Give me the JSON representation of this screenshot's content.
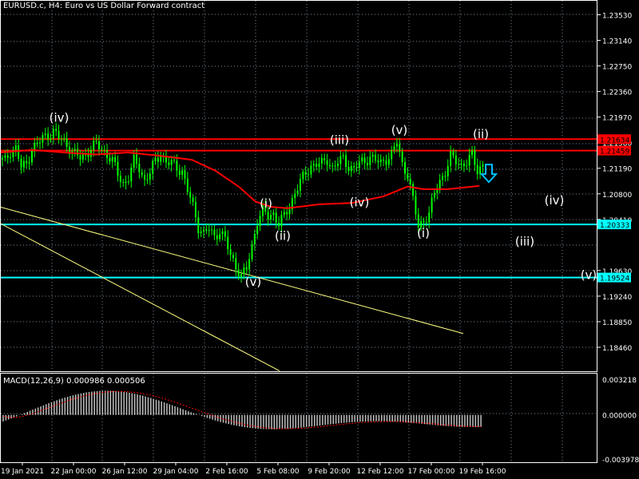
{
  "header": {
    "title": "EURUSD.c, H4:  Euro vs US Dollar Forward contract"
  },
  "macd": {
    "title": "MACD(12,26,9) 0.000986 0.000506",
    "ticks": [
      "0.003218",
      "0.000000",
      "-0.003978"
    ]
  },
  "price_axis": {
    "ticks": [
      "1.23530",
      "1.23140",
      "1.22750",
      "1.22360",
      "1.21970",
      "1.21580",
      "1.21190",
      "1.20800",
      "1.20410",
      "1.19630",
      "1.19240",
      "1.18850",
      "1.18460"
    ]
  },
  "price_tags": [
    {
      "value": "1.21634",
      "color": "#ff0000"
    },
    {
      "value": "1.21459",
      "color": "#ff0000"
    },
    {
      "value": "1.20333",
      "color": "#00ffff"
    },
    {
      "value": "1.19524",
      "color": "#00ffff"
    }
  ],
  "time_axis": {
    "ticks": [
      "19 Jan 2021",
      "22 Jan 00:00",
      "26 Jan 12:00",
      "29 Jan 04:00",
      "2 Feb 16:00",
      "5 Feb 08:00",
      "9 Feb 20:00",
      "12 Feb 12:00",
      "17 Feb 00:00",
      "19 Feb 16:00"
    ]
  },
  "wave_labels": [
    "(iv)",
    "(v)",
    "(i)",
    "(ii)",
    "(iii)",
    "(iv)",
    "(v)",
    "(i)",
    "(ii)",
    "(iii)",
    "(iv)",
    "(v)"
  ],
  "colors": {
    "background": "#000000",
    "candles": "#00ff00",
    "grid": "#778899",
    "ma": "#ff0000",
    "resistance": "#ff0000",
    "support": "#00ffff",
    "trendline": "#ffff80",
    "arrow": "#00bfff",
    "macd_hist": "#c0c0c0",
    "macd_signal": "#ff0000"
  },
  "chart_data": {
    "type": "candlestick",
    "symbol": "EURUSD.c",
    "timeframe": "H4",
    "close_path": [
      1.2132,
      1.213,
      1.2145,
      1.215,
      1.212,
      1.2125,
      1.215,
      1.2155,
      1.2165,
      1.217,
      1.2175,
      1.2165,
      1.216,
      1.215,
      1.214,
      1.2135,
      1.214,
      1.215,
      1.2155,
      1.2148,
      1.214,
      1.213,
      1.211,
      1.2095,
      1.2105,
      1.213,
      1.212,
      1.21,
      1.2112,
      1.213,
      1.2142,
      1.2128,
      1.2126,
      1.212,
      1.2115,
      1.2085,
      1.206,
      1.203,
      1.202,
      1.2026,
      1.2014,
      1.2025,
      1.201,
      1.1985,
      1.197,
      1.1955,
      1.1965,
      1.2,
      1.204,
      1.2054,
      1.2045,
      1.205,
      1.2035,
      1.2045,
      1.206,
      1.2083,
      1.2098,
      1.211,
      1.2123,
      1.2126,
      1.2125,
      1.2132,
      1.212,
      1.2128,
      1.2133,
      1.2122,
      1.2118,
      1.2126,
      1.213,
      1.2137,
      1.2131,
      1.2126,
      1.2134,
      1.214,
      1.2158,
      1.2125,
      1.211,
      1.207,
      1.203,
      1.204,
      1.205,
      1.208,
      1.21,
      1.2114,
      1.2136,
      1.213,
      1.2124,
      1.2128,
      1.2138,
      1.2116,
      1.2125
    ],
    "moving_average": [
      [
        0,
        1.2143
      ],
      [
        40,
        1.2147
      ],
      [
        80,
        1.2143
      ],
      [
        120,
        1.214
      ],
      [
        160,
        1.2143
      ],
      [
        200,
        1.2138
      ],
      [
        240,
        1.2132
      ],
      [
        270,
        1.2115
      ],
      [
        300,
        1.209
      ],
      [
        320,
        1.2068
      ],
      [
        340,
        1.206
      ],
      [
        360,
        1.2058
      ],
      [
        400,
        1.2064
      ],
      [
        440,
        1.2066
      ],
      [
        480,
        1.2076
      ],
      [
        510,
        1.2091
      ],
      [
        530,
        1.2087
      ],
      [
        560,
        1.2087
      ],
      [
        600,
        1.2092
      ]
    ],
    "horizontal_lines": [
      {
        "price": 1.21634,
        "color": "#ff0000"
      },
      {
        "price": 1.21459,
        "color": "#ff0000"
      },
      {
        "price": 1.20333,
        "color": "#00ffff"
      },
      {
        "price": 1.19524,
        "color": "#00ffff"
      }
    ],
    "trendlines": [
      {
        "from": [
          0,
          1.206
        ],
        "to": [
          580,
          1.1867
        ],
        "color": "#ffff80"
      },
      {
        "from": [
          0,
          1.2035
        ],
        "to": [
          350,
          1.181
        ],
        "color": "#ffff80"
      }
    ],
    "sell_arrow": {
      "index": 612,
      "price": 1.211
    },
    "wave_positions": [
      {
        "x": 74,
        "price": 1.219
      },
      {
        "x": 317,
        "price": 1.194
      },
      {
        "x": 333,
        "price": 1.2059
      },
      {
        "x": 354,
        "price": 1.201
      },
      {
        "x": 425,
        "price": 1.2156
      },
      {
        "x": 450,
        "price": 1.2061
      },
      {
        "x": 500,
        "price": 1.2171
      },
      {
        "x": 530,
        "price": 1.2014
      },
      {
        "x": 602,
        "price": 1.2165
      },
      {
        "x": 657,
        "price": 1.2001
      },
      {
        "x": 694,
        "price": 1.2064
      },
      {
        "x": 737,
        "price": 1.195
      }
    ],
    "macd": {
      "main": 0.000986,
      "signal": 0.000506,
      "ylim": [
        -0.003978,
        0.003218
      ]
    }
  }
}
